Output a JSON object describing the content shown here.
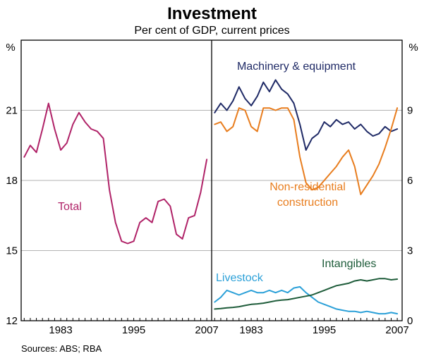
{
  "header": {
    "title": "Investment",
    "subtitle": "Per cent of GDP, current prices"
  },
  "footer": {
    "sources": "Sources: ABS; RBA"
  },
  "annotations": {
    "machinery": {
      "text": "Machinery & equipment",
      "color": "#1f2a66"
    },
    "nonres": {
      "text": "Non-residential construction",
      "color": "#e87d1e"
    },
    "total": {
      "text": "Total",
      "color": "#b02368"
    },
    "livestock": {
      "text": "Livestock",
      "color": "#2ba0d8"
    },
    "intangibles": {
      "text": "Intangibles",
      "color": "#1e5c3a"
    }
  },
  "chart_data": [
    {
      "type": "line",
      "panel": "left",
      "title": "Total investment, per cent of GDP",
      "ylabel": "%",
      "ylim": [
        12,
        24
      ],
      "yticks": [
        12,
        15,
        18,
        21
      ],
      "xticks": [
        1983,
        1995,
        2007
      ],
      "grid": true,
      "x": [
        1977,
        1978,
        1979,
        1980,
        1981,
        1982,
        1983,
        1984,
        1985,
        1986,
        1987,
        1988,
        1989,
        1990,
        1991,
        1992,
        1993,
        1994,
        1995,
        1996,
        1997,
        1998,
        1999,
        2000,
        2001,
        2002,
        2003,
        2004,
        2005,
        2006,
        2007
      ],
      "series": [
        {
          "name": "Total",
          "color": "#b02368",
          "values": [
            19.0,
            19.5,
            19.2,
            20.2,
            21.3,
            20.2,
            19.3,
            19.6,
            20.4,
            20.9,
            20.5,
            20.2,
            20.1,
            19.8,
            17.6,
            16.2,
            15.4,
            15.3,
            15.4,
            16.2,
            16.4,
            16.2,
            17.1,
            17.2,
            16.9,
            15.7,
            15.5,
            16.4,
            16.5,
            17.5,
            18.9
          ]
        }
      ]
    },
    {
      "type": "line",
      "panel": "right",
      "title": "Components of investment, per cent of GDP",
      "ylabel": "%",
      "ylim": [
        0,
        12
      ],
      "yticks": [
        0,
        3,
        6,
        9
      ],
      "xticks": [
        1983,
        1995,
        2007
      ],
      "grid": true,
      "x": [
        1977,
        1978,
        1979,
        1980,
        1981,
        1982,
        1983,
        1984,
        1985,
        1986,
        1987,
        1988,
        1989,
        1990,
        1991,
        1992,
        1993,
        1994,
        1995,
        1996,
        1997,
        1998,
        1999,
        2000,
        2001,
        2002,
        2003,
        2004,
        2005,
        2006,
        2007
      ],
      "series": [
        {
          "name": "Machinery & equipment",
          "color": "#1f2a66",
          "values": [
            8.9,
            9.3,
            9.0,
            9.4,
            10.0,
            9.5,
            9.2,
            9.6,
            10.2,
            9.8,
            10.3,
            9.9,
            9.7,
            9.3,
            8.4,
            7.3,
            7.8,
            8.0,
            8.5,
            8.3,
            8.6,
            8.4,
            8.5,
            8.2,
            8.4,
            8.1,
            7.9,
            8.0,
            8.3,
            8.1,
            8.2
          ]
        },
        {
          "name": "Non-residential construction",
          "color": "#e87d1e",
          "values": [
            8.4,
            8.5,
            8.1,
            8.3,
            9.1,
            9.0,
            8.3,
            8.1,
            9.1,
            9.1,
            9.0,
            9.1,
            9.1,
            8.6,
            7.0,
            5.9,
            5.6,
            5.7,
            6.0,
            6.3,
            6.6,
            7.0,
            7.3,
            6.6,
            5.4,
            5.8,
            6.2,
            6.7,
            7.4,
            8.2,
            9.1
          ]
        },
        {
          "name": "Livestock",
          "color": "#2ba0d8",
          "values": [
            0.8,
            1.0,
            1.3,
            1.2,
            1.1,
            1.2,
            1.3,
            1.2,
            1.2,
            1.3,
            1.2,
            1.3,
            1.2,
            1.4,
            1.45,
            1.2,
            1.0,
            0.8,
            0.7,
            0.6,
            0.5,
            0.45,
            0.4,
            0.4,
            0.35,
            0.4,
            0.35,
            0.3,
            0.3,
            0.35,
            0.3
          ]
        },
        {
          "name": "Intangibles",
          "color": "#1e5c3a",
          "values": [
            0.5,
            0.52,
            0.55,
            0.57,
            0.6,
            0.65,
            0.7,
            0.72,
            0.75,
            0.8,
            0.85,
            0.88,
            0.9,
            0.95,
            1.0,
            1.05,
            1.1,
            1.2,
            1.3,
            1.4,
            1.5,
            1.55,
            1.6,
            1.7,
            1.75,
            1.7,
            1.75,
            1.8,
            1.8,
            1.75,
            1.78
          ]
        }
      ]
    }
  ]
}
